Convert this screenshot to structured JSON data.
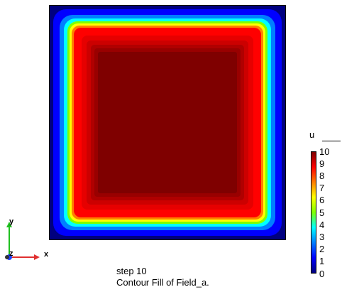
{
  "plot": {
    "colors": {
      "level_0": "#00007f",
      "level_1": "#0000ff",
      "level_2": "#007fff",
      "level_3": "#00ffff",
      "level_5": "#7fff00",
      "level_7": "#ffff00",
      "level_8": "#ff7f00",
      "level_9": "#ff0000",
      "level_10": "#7f0000"
    }
  },
  "legend": {
    "variable": "u",
    "ticks": [
      "10",
      "9",
      "8",
      "7",
      "6",
      "5",
      "4",
      "3",
      "2",
      "1",
      "0"
    ],
    "min": 0,
    "max": 10,
    "gradient_colors": [
      "#7f0000",
      "#ff0000",
      "#ff7f00",
      "#ffff00",
      "#7fff00",
      "#00ffff",
      "#007fff",
      "#0000ff",
      "#00007f"
    ]
  },
  "caption": {
    "step": "step 10",
    "description": "Contour Fill of Field_a."
  },
  "axes": {
    "x_label": "x",
    "y_label": "y",
    "z_label": "z",
    "x_color": "#e03030",
    "y_color": "#20c020",
    "z_color": "#2040ff"
  }
}
